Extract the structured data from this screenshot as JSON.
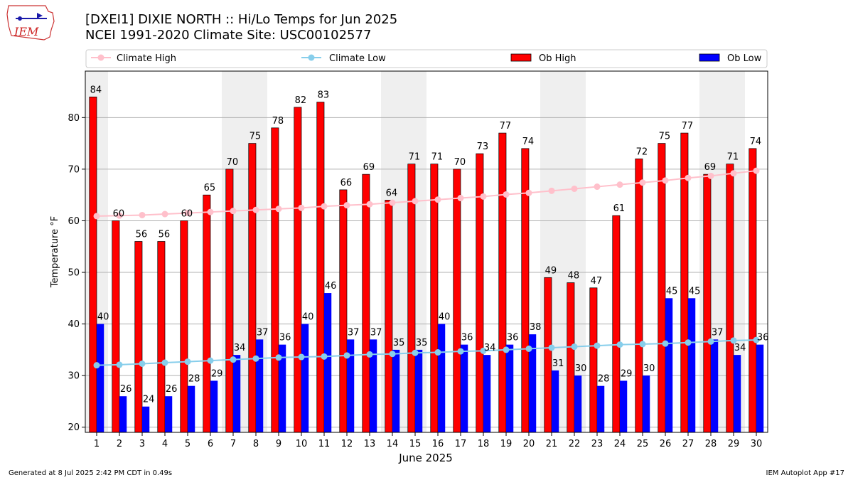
{
  "header": {
    "title_line1": "[DXEI1] DIXIE NORTH :: Hi/Lo Temps for Jun 2025",
    "title_line2": "NCEI 1991-2020 Climate Site: USC00102577",
    "logo_text": "IEM"
  },
  "footer": {
    "generated": "Generated at 8 Jul 2025 2:42 PM CDT in 0.49s",
    "app": "IEM Autoplot App #17"
  },
  "chart_data": {
    "type": "bar",
    "xlabel": "June 2025",
    "ylabel": "Temperature °F",
    "ylim": [
      19,
      89
    ],
    "yticks": [
      20,
      30,
      40,
      50,
      60,
      70,
      80
    ],
    "grid": "horizontal",
    "legend_position": "top",
    "weekend_shading": [
      [
        1,
        1
      ],
      [
        7,
        8
      ],
      [
        14,
        15
      ],
      [
        21,
        22
      ],
      [
        28,
        29
      ]
    ],
    "categories": [
      "1",
      "2",
      "3",
      "4",
      "5",
      "6",
      "7",
      "8",
      "9",
      "10",
      "11",
      "12",
      "13",
      "14",
      "15",
      "16",
      "17",
      "18",
      "19",
      "20",
      "21",
      "22",
      "23",
      "24",
      "25",
      "26",
      "27",
      "28",
      "29",
      "30"
    ],
    "series": [
      {
        "name": "Ob High",
        "type": "bar",
        "color": "#ff0000",
        "values": [
          84,
          60,
          56,
          56,
          60,
          65,
          70,
          75,
          78,
          82,
          83,
          66,
          69,
          64,
          71,
          71,
          70,
          73,
          77,
          74,
          49,
          48,
          47,
          61,
          72,
          75,
          77,
          69,
          71,
          74
        ]
      },
      {
        "name": "Ob Low",
        "type": "bar",
        "color": "#0000ff",
        "values": [
          40,
          26,
          24,
          26,
          28,
          29,
          34,
          37,
          36,
          40,
          46,
          37,
          37,
          35,
          35,
          40,
          36,
          34,
          36,
          38,
          31,
          30,
          28,
          29,
          30,
          45,
          45,
          37,
          34,
          36
        ]
      },
      {
        "name": "Climate High",
        "type": "line",
        "color": "#ffc0cb",
        "values": [
          60.9,
          61.0,
          61.1,
          61.3,
          61.5,
          61.7,
          61.9,
          62.1,
          62.3,
          62.5,
          62.8,
          63.0,
          63.2,
          63.5,
          63.8,
          64.1,
          64.4,
          64.7,
          65.1,
          65.4,
          65.8,
          66.2,
          66.6,
          67.0,
          67.4,
          67.8,
          68.3,
          68.7,
          69.2,
          69.7
        ]
      },
      {
        "name": "Climate Low",
        "type": "line",
        "color": "#87ceeb",
        "values": [
          32.0,
          32.1,
          32.3,
          32.5,
          32.7,
          32.9,
          33.1,
          33.3,
          33.5,
          33.6,
          33.7,
          33.9,
          34.1,
          34.2,
          34.4,
          34.5,
          34.7,
          34.8,
          35.0,
          35.2,
          35.4,
          35.6,
          35.8,
          36.0,
          36.1,
          36.2,
          36.4,
          36.6,
          36.8,
          36.9
        ]
      }
    ]
  }
}
